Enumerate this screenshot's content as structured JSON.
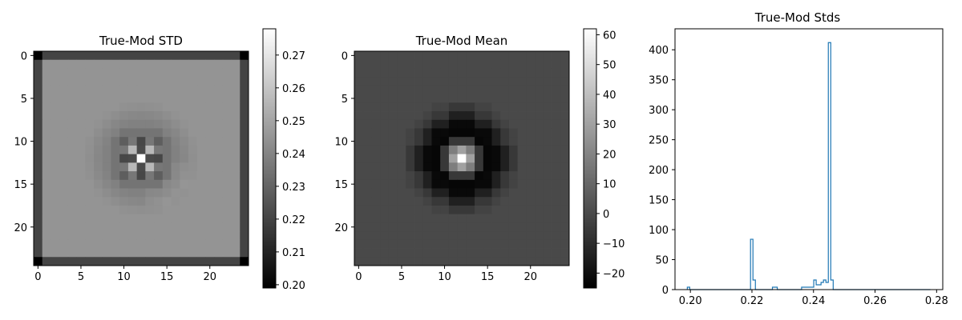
{
  "chart_data": [
    {
      "type": "heatmap",
      "title": "True-Mod STD",
      "colormap": "gray",
      "grid_size": [
        25,
        25
      ],
      "x_ticks": [
        0,
        5,
        10,
        15,
        20
      ],
      "y_ticks": [
        0,
        5,
        10,
        15,
        20
      ],
      "colorbar": {
        "range": [
          0.199,
          0.278
        ],
        "ticks": [
          0.2,
          0.21,
          0.22,
          0.23,
          0.24,
          0.25,
          0.26,
          0.27
        ],
        "tick_labels": [
          "0.20",
          "0.21",
          "0.22",
          "0.23",
          "0.24",
          "0.25",
          "0.26",
          "0.27"
        ]
      },
      "values_description_levels": {
        "background": 0.245,
        "border": 0.22,
        "corner": 0.199,
        "center": 0.278
      }
    },
    {
      "type": "heatmap",
      "title": "True-Mod Mean",
      "colormap": "gray",
      "grid_size": [
        25,
        25
      ],
      "x_ticks": [
        0,
        5,
        10,
        15,
        20
      ],
      "y_ticks": [
        0,
        5,
        10,
        15,
        20
      ],
      "colorbar": {
        "range": [
          -25,
          62
        ],
        "ticks": [
          -20,
          -10,
          0,
          10,
          20,
          30,
          40,
          50,
          60
        ],
        "tick_labels": [
          "−20",
          "−10",
          "0",
          "10",
          "20",
          "30",
          "40",
          "50",
          "60"
        ]
      },
      "values_description_levels": {
        "background": 0,
        "ring": -24,
        "center": 62
      }
    },
    {
      "type": "histogram",
      "title": "True-Mod Stds",
      "xlim": [
        0.195,
        0.282
      ],
      "ylim": [
        0,
        435
      ],
      "x_ticks": [
        0.2,
        0.22,
        0.24,
        0.26,
        0.28
      ],
      "x_tick_labels": [
        "0.20",
        "0.22",
        "0.24",
        "0.26",
        "0.28"
      ],
      "y_ticks": [
        0,
        50,
        100,
        150,
        200,
        250,
        300,
        350,
        400
      ],
      "line_color": "#1f77b4",
      "bin_edges_start": 0.199,
      "bin_width": 0.00079,
      "counts": [
        4,
        0,
        0,
        0,
        0,
        0,
        0,
        0,
        0,
        0,
        0,
        0,
        0,
        0,
        0,
        0,
        0,
        0,
        0,
        0,
        0,
        0,
        0,
        0,
        0,
        0,
        84,
        16,
        0,
        0,
        0,
        0,
        0,
        0,
        0,
        4,
        4,
        0,
        0,
        0,
        0,
        0,
        0,
        0,
        0,
        0,
        0,
        4,
        4,
        4,
        4,
        4,
        16,
        8,
        8,
        12,
        16,
        12,
        412,
        16,
        0,
        0,
        0,
        0,
        0,
        0,
        0,
        0,
        0,
        0,
        0,
        0,
        0,
        0,
        0,
        0,
        0,
        0,
        0,
        0,
        0,
        0,
        0,
        0,
        0,
        0,
        0,
        0,
        0,
        0,
        0,
        0,
        0,
        0,
        0,
        0,
        0,
        0,
        0,
        0
      ]
    }
  ]
}
